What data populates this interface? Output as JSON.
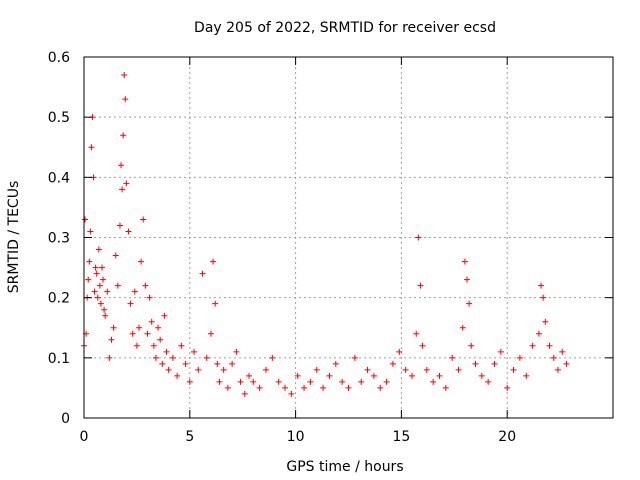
{
  "chart_data": {
    "type": "scatter",
    "title": "Day 205 of 2022, SRMTID for receiver ecsd",
    "xlabel": "GPS time / hours",
    "ylabel": "SRMTID / TECUs",
    "xlim": [
      0,
      25
    ],
    "ylim": [
      0,
      0.6
    ],
    "xticks": [
      0,
      5,
      10,
      15,
      20
    ],
    "yticks": [
      0,
      0.1,
      0.2,
      0.3,
      0.4,
      0.5,
      0.6
    ],
    "xtick_labels": [
      "0",
      "5",
      "10",
      "15",
      "20"
    ],
    "ytick_labels": [
      "0",
      "0.1",
      "0.2",
      "0.3",
      "0.4",
      "0.5",
      "0.6"
    ],
    "grid": true,
    "marker": "+",
    "color": "#ff0000",
    "series": [
      {
        "name": "SRMTID",
        "x": [
          0.0,
          0.05,
          0.1,
          0.15,
          0.2,
          0.25,
          0.3,
          0.35,
          0.4,
          0.45,
          0.5,
          0.55,
          0.6,
          0.65,
          0.7,
          0.75,
          0.8,
          0.85,
          0.9,
          0.95,
          1.0,
          1.1,
          1.2,
          1.3,
          1.4,
          1.5,
          1.6,
          1.7,
          1.75,
          1.8,
          1.85,
          1.9,
          1.95,
          2.0,
          2.1,
          2.2,
          2.3,
          2.4,
          2.5,
          2.6,
          2.7,
          2.8,
          2.9,
          3.0,
          3.1,
          3.2,
          3.3,
          3.4,
          3.5,
          3.6,
          3.7,
          3.8,
          3.9,
          4.0,
          4.2,
          4.4,
          4.6,
          4.8,
          5.0,
          5.2,
          5.4,
          5.6,
          5.8,
          6.0,
          6.1,
          6.2,
          6.3,
          6.4,
          6.6,
          6.8,
          7.0,
          7.2,
          7.4,
          7.6,
          7.8,
          8.0,
          8.3,
          8.6,
          8.9,
          9.2,
          9.5,
          9.8,
          10.1,
          10.4,
          10.7,
          11.0,
          11.3,
          11.6,
          11.9,
          12.2,
          12.5,
          12.8,
          13.1,
          13.4,
          13.7,
          14.0,
          14.3,
          14.6,
          14.9,
          15.2,
          15.5,
          15.7,
          15.8,
          15.9,
          16.0,
          16.2,
          16.5,
          16.8,
          17.1,
          17.4,
          17.7,
          17.9,
          18.0,
          18.1,
          18.2,
          18.3,
          18.5,
          18.8,
          19.1,
          19.4,
          19.7,
          20.0,
          20.3,
          20.6,
          20.9,
          21.2,
          21.5,
          21.6,
          21.7,
          21.8,
          22.0,
          22.2,
          22.4,
          22.6,
          22.8
        ],
        "y": [
          0.12,
          0.33,
          0.14,
          0.2,
          0.23,
          0.26,
          0.31,
          0.45,
          0.5,
          0.4,
          0.21,
          0.25,
          0.24,
          0.2,
          0.28,
          0.22,
          0.19,
          0.25,
          0.23,
          0.18,
          0.17,
          0.21,
          0.1,
          0.13,
          0.15,
          0.27,
          0.22,
          0.32,
          0.42,
          0.38,
          0.47,
          0.57,
          0.53,
          0.39,
          0.31,
          0.19,
          0.14,
          0.21,
          0.12,
          0.15,
          0.26,
          0.33,
          0.22,
          0.14,
          0.2,
          0.16,
          0.12,
          0.1,
          0.15,
          0.13,
          0.09,
          0.17,
          0.11,
          0.08,
          0.1,
          0.07,
          0.12,
          0.09,
          0.06,
          0.11,
          0.08,
          0.24,
          0.1,
          0.14,
          0.26,
          0.19,
          0.09,
          0.06,
          0.08,
          0.05,
          0.09,
          0.11,
          0.06,
          0.04,
          0.07,
          0.06,
          0.05,
          0.08,
          0.1,
          0.06,
          0.05,
          0.04,
          0.07,
          0.05,
          0.06,
          0.08,
          0.05,
          0.07,
          0.09,
          0.06,
          0.05,
          0.1,
          0.06,
          0.08,
          0.07,
          0.05,
          0.06,
          0.09,
          0.11,
          0.08,
          0.07,
          0.14,
          0.3,
          0.22,
          0.12,
          0.08,
          0.06,
          0.07,
          0.05,
          0.1,
          0.08,
          0.15,
          0.26,
          0.23,
          0.19,
          0.12,
          0.09,
          0.07,
          0.06,
          0.09,
          0.11,
          0.05,
          0.08,
          0.1,
          0.07,
          0.12,
          0.14,
          0.22,
          0.2,
          0.16,
          0.12,
          0.1,
          0.08,
          0.11,
          0.09
        ]
      }
    ]
  }
}
